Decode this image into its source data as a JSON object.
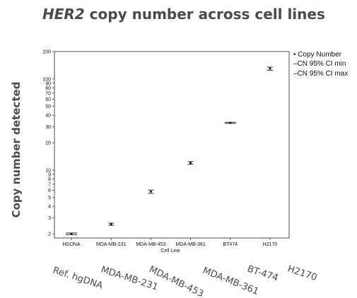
{
  "title": {
    "italic": "HER2",
    "rest": " copy number across cell lines"
  },
  "chart_data": {
    "type": "scatter",
    "scale": "log",
    "title": "HER2 copy number across cell lines",
    "xlabel": "Cell Line",
    "ylabel": "Copy number detected",
    "ylim": [
      1.8,
      200
    ],
    "yticks": [
      2,
      3,
      4,
      5,
      6,
      7,
      8,
      9,
      10,
      20,
      30,
      40,
      50,
      60,
      70,
      80,
      90,
      100,
      200
    ],
    "categories": [
      "HGDNA",
      "MDA-MB-231",
      "MDA-MB-453",
      "MDA-MB-361",
      "BT474",
      "H2170"
    ],
    "series": [
      {
        "name": "Copy Number",
        "values": [
          2.0,
          2.55,
          5.8,
          12.0,
          33.0,
          130.0
        ]
      },
      {
        "name": "CN 95% CI min",
        "values": [
          1.96,
          2.48,
          5.55,
          11.6,
          32.5,
          125.0
        ]
      },
      {
        "name": "CN 95% CI max",
        "values": [
          2.04,
          2.62,
          6.05,
          12.4,
          33.5,
          135.0
        ]
      }
    ],
    "legend": "right",
    "grid": false
  },
  "legend": [
    {
      "marker": "•",
      "label": "Copy Number"
    },
    {
      "marker": "–",
      "label": "CN 95% CI min"
    },
    {
      "marker": "–",
      "label": "CN 95% CI max"
    }
  ],
  "rotated_labels": [
    "Ref. hgDNA",
    "MDA-MB-231",
    "MDA-MB-453",
    "MDA-MB-361",
    "BT-474",
    "H2170"
  ]
}
